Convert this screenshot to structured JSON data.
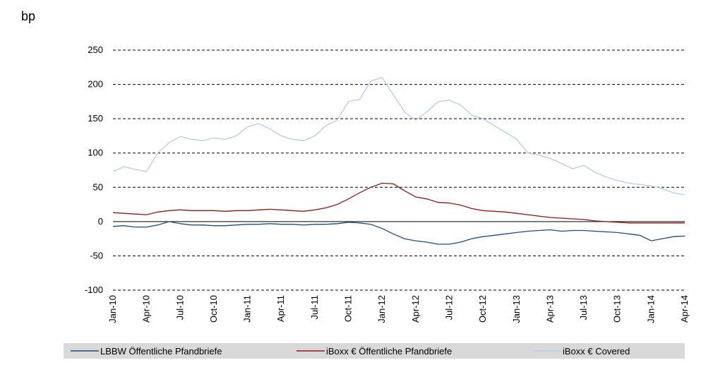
{
  "chart_data": {
    "type": "line",
    "y_label": "bp",
    "categories": [
      "Jan-10",
      null,
      null,
      "Apr-10",
      null,
      null,
      "Jul-10",
      null,
      null,
      "Oct-10",
      null,
      null,
      "Jan-11",
      null,
      null,
      "Apr-11",
      null,
      null,
      "Jul-11",
      null,
      null,
      "Oct-11",
      null,
      null,
      "Jan-12",
      null,
      null,
      "Apr-12",
      null,
      null,
      "Jul-12",
      null,
      null,
      "Oct-12",
      null,
      null,
      "Jan-13",
      null,
      null,
      "Apr-13",
      null,
      null,
      "Jul-13",
      null,
      null,
      "Oct-13",
      null,
      null,
      "Jan-14",
      null,
      null,
      "Apr-14"
    ],
    "series": [
      {
        "name": "LBBW Öffentliche Pfandbriefe",
        "color": "#1f4e79",
        "values": [
          -7,
          -6,
          -8,
          -8,
          -5,
          0,
          -3,
          -5,
          -5,
          -6,
          -6,
          -5,
          -4,
          -4,
          -3,
          -4,
          -4,
          -5,
          -4,
          -4,
          -3,
          -1,
          -2,
          -4,
          -10,
          -18,
          -25,
          -28,
          -30,
          -33,
          -33,
          -30,
          -25,
          -22,
          -20,
          -18,
          -16,
          -14,
          -13,
          -12,
          -14,
          -13,
          -13,
          -14,
          -15,
          -16,
          -18,
          -20,
          -28,
          -25,
          -22,
          -21
        ]
      },
      {
        "name": "iBoxx € Öffentliche Pfandbriefe",
        "color": "#8b1a1a",
        "values": [
          13,
          12,
          11,
          10,
          14,
          16,
          17,
          16,
          16,
          16,
          15,
          16,
          16,
          17,
          18,
          17,
          16,
          15,
          17,
          20,
          25,
          33,
          42,
          50,
          56,
          55,
          45,
          36,
          33,
          28,
          27,
          24,
          19,
          16,
          15,
          14,
          12,
          10,
          8,
          6,
          5,
          4,
          3,
          1,
          0,
          -1,
          -2,
          -2,
          -2,
          -2,
          -2,
          -2
        ]
      },
      {
        "name": "iBoxx € Covered",
        "color": "#b8cce4",
        "values": [
          73,
          80,
          76,
          73,
          100,
          115,
          124,
          120,
          118,
          122,
          120,
          125,
          138,
          143,
          135,
          125,
          120,
          118,
          125,
          140,
          148,
          175,
          178,
          205,
          210,
          185,
          160,
          148,
          160,
          175,
          177,
          170,
          155,
          150,
          140,
          130,
          120,
          100,
          97,
          92,
          85,
          77,
          82,
          72,
          65,
          60,
          56,
          54,
          52,
          48,
          42,
          39
        ]
      }
    ],
    "ylim": [
      -100,
      250
    ],
    "yticks": [
      -100,
      -50,
      0,
      50,
      100,
      150,
      200,
      250
    ],
    "grid": true
  }
}
